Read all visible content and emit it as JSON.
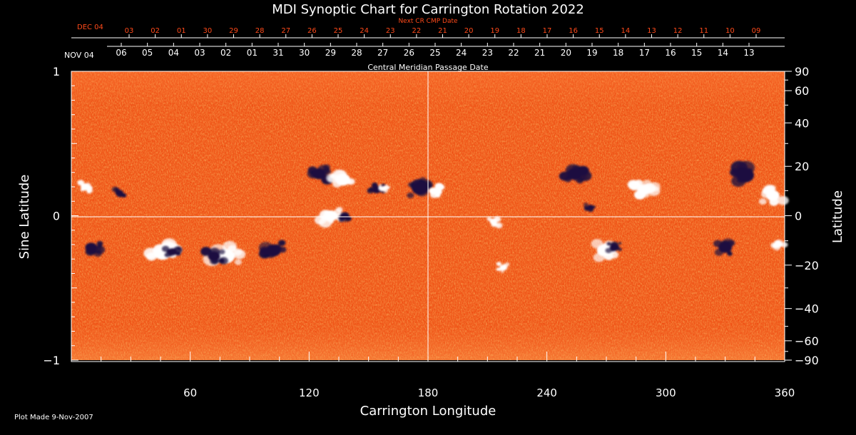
{
  "colors": {
    "background": "#000000",
    "axis": "#ffffff",
    "next_cr": "#ff4a1a",
    "field_base": "#ee4a10",
    "negative_polarity": "#1a1040",
    "positive_polarity": "#ffffff"
  },
  "chart_data": {
    "type": "heatmap",
    "title": "MDI Synoptic Chart for Carrington Rotation 2022",
    "xlabel": "Carrington Longitude",
    "ylabel_left": "Sine Latitude",
    "ylabel_right": "Latitude",
    "xlim": [
      0,
      360
    ],
    "ylim": [
      -1,
      1
    ],
    "x_ticks": [
      60,
      120,
      180,
      240,
      300,
      360
    ],
    "left_ticks": [
      {
        "value": 1,
        "label": "1"
      },
      {
        "value": 0,
        "label": "0"
      },
      {
        "value": -1,
        "label": "−1"
      }
    ],
    "right_ticks_deg": [
      90,
      60,
      40,
      20,
      0,
      -20,
      -40,
      -60,
      -90
    ],
    "right_tick_labels": [
      "90",
      "60",
      "40",
      "20",
      "0",
      "−20",
      "−40",
      "−60",
      "−90"
    ],
    "reference_lines": {
      "longitude": 180,
      "sine_latitude": 0
    },
    "grid": false,
    "cmp_axis": {
      "label": "Central Meridian Passage Date",
      "start_label": "NOV 04",
      "dates": [
        "06",
        "05",
        "04",
        "03",
        "02",
        "01",
        "31",
        "30",
        "29",
        "28",
        "27",
        "26",
        "25",
        "24",
        "23",
        "22",
        "21",
        "20",
        "19",
        "18",
        "17",
        "16",
        "15",
        "14",
        "13"
      ]
    },
    "next_cr_axis": {
      "label": "Next CR CMP Date",
      "start_label": "DEC 04",
      "dates": [
        "03",
        "02",
        "01",
        "30",
        "29",
        "28",
        "27",
        "26",
        "25",
        "24",
        "23",
        "22",
        "21",
        "20",
        "19",
        "18",
        "17",
        "16",
        "15",
        "14",
        "13",
        "12",
        "11",
        "10",
        "09"
      ]
    },
    "active_regions": [
      {
        "lon": 46,
        "sinlat": -0.26,
        "polarity": "positive",
        "size": 1.1
      },
      {
        "lon": 51,
        "sinlat": -0.25,
        "polarity": "negative",
        "size": 0.6
      },
      {
        "lon": 78,
        "sinlat": -0.28,
        "polarity": "positive",
        "size": 1.2
      },
      {
        "lon": 72,
        "sinlat": -0.28,
        "polarity": "negative",
        "size": 0.8
      },
      {
        "lon": 102,
        "sinlat": -0.24,
        "polarity": "negative",
        "size": 1.0
      },
      {
        "lon": 125,
        "sinlat": 0.29,
        "polarity": "negative",
        "size": 0.9
      },
      {
        "lon": 137,
        "sinlat": 0.25,
        "polarity": "positive",
        "size": 1.0
      },
      {
        "lon": 131,
        "sinlat": 0.0,
        "polarity": "positive",
        "size": 0.9
      },
      {
        "lon": 138,
        "sinlat": 0.0,
        "polarity": "negative",
        "size": 0.6
      },
      {
        "lon": 176,
        "sinlat": 0.19,
        "polarity": "negative",
        "size": 1.1
      },
      {
        "lon": 183,
        "sinlat": 0.17,
        "polarity": "positive",
        "size": 0.6
      },
      {
        "lon": 154,
        "sinlat": 0.18,
        "polarity": "negative",
        "size": 0.6
      },
      {
        "lon": 158,
        "sinlat": 0.19,
        "polarity": "positive",
        "size": 0.4
      },
      {
        "lon": 24,
        "sinlat": 0.16,
        "polarity": "negative",
        "size": 0.5
      },
      {
        "lon": 7,
        "sinlat": 0.2,
        "polarity": "positive",
        "size": 0.6
      },
      {
        "lon": 269,
        "sinlat": -0.24,
        "polarity": "positive",
        "size": 1.0
      },
      {
        "lon": 274,
        "sinlat": -0.22,
        "polarity": "negative",
        "size": 0.6
      },
      {
        "lon": 289,
        "sinlat": 0.18,
        "polarity": "positive",
        "size": 0.9
      },
      {
        "lon": 262,
        "sinlat": 0.06,
        "polarity": "negative",
        "size": 0.4
      },
      {
        "lon": 254,
        "sinlat": 0.29,
        "polarity": "negative",
        "size": 1.0
      },
      {
        "lon": 213,
        "sinlat": -0.04,
        "polarity": "positive",
        "size": 0.5
      },
      {
        "lon": 218,
        "sinlat": -0.36,
        "polarity": "positive",
        "size": 0.5
      },
      {
        "lon": 354,
        "sinlat": 0.14,
        "polarity": "positive",
        "size": 0.9
      },
      {
        "lon": 340,
        "sinlat": 0.28,
        "polarity": "negative",
        "size": 1.2
      },
      {
        "lon": 357,
        "sinlat": -0.2,
        "polarity": "positive",
        "size": 0.5
      },
      {
        "lon": 10,
        "sinlat": -0.22,
        "polarity": "negative",
        "size": 0.8
      },
      {
        "lon": 330,
        "sinlat": -0.22,
        "polarity": "negative",
        "size": 0.9
      }
    ]
  },
  "footer": "Plot Made  9-Nov-2007"
}
